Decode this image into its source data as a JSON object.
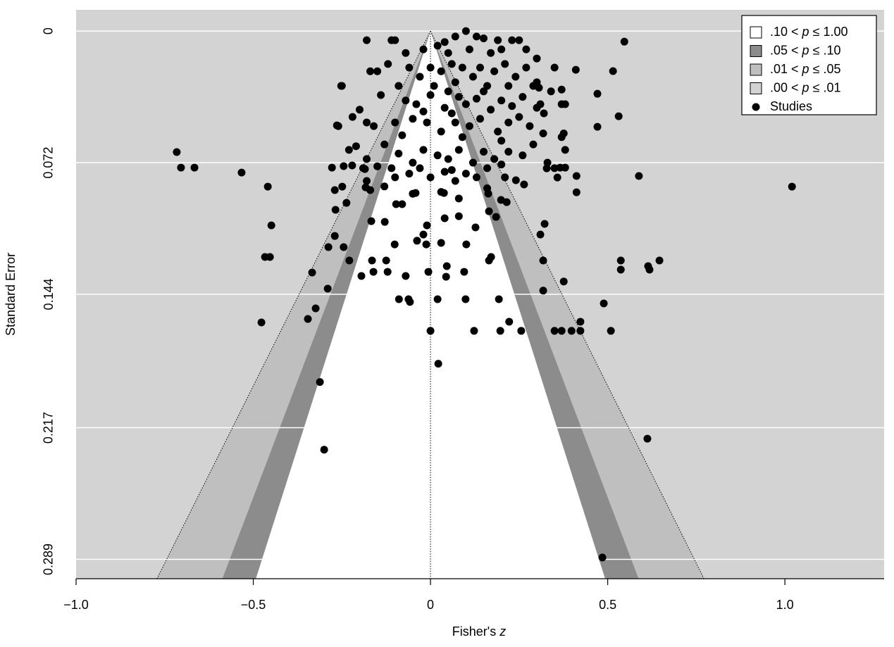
{
  "chart_data": {
    "type": "funnel",
    "xlabel": [
      "Fisher's ",
      "z"
    ],
    "ylabel": "Standard Error",
    "xlim": [
      -1.0,
      1.28
    ],
    "ylim": [
      -0.0116,
      0.2996
    ],
    "y_reversed": true,
    "xticks": [
      {
        "value": -1.0,
        "label": "−1.0"
      },
      {
        "value": -0.5,
        "label": "−0.5"
      },
      0,
      0.5,
      {
        "value": 1.0,
        "label": "1.0"
      }
    ],
    "yticks": [
      0,
      0.072,
      0.144,
      0.217,
      0.289
    ],
    "grid": true,
    "refline": 0,
    "legend_position": "top-right",
    "contours": [
      {
        "label": [
          ".10 < ",
          "p",
          " ≤ 1.00"
        ],
        "p_range": [
          0.1,
          1.0
        ],
        "color": "#ffffff"
      },
      {
        "label": [
          ".05 < ",
          "p",
          " ≤ .10"
        ],
        "p_range": [
          0.05,
          0.1
        ],
        "color": "#8c8c8c"
      },
      {
        "label": [
          ".01 < ",
          "p",
          " ≤ .05"
        ],
        "p_range": [
          0.01,
          0.05
        ],
        "color": "#bfbfbf"
      },
      {
        "label": [
          ".00 < ",
          "p",
          " ≤ .01"
        ],
        "p_range": [
          0.0,
          0.01
        ],
        "color": "#d3d3d3"
      }
    ],
    "series": [
      {
        "name": "Studies",
        "color": "#000000",
        "x": [
          -0.716,
          -0.704,
          -0.666,
          -0.533,
          -0.459,
          -0.449,
          -0.467,
          -0.453,
          -0.477,
          1.02,
          0.588,
          0.547,
          0.515,
          0.41,
          0.471,
          0.531,
          0.471,
          0.485,
          0.612,
          -0.3,
          -0.312,
          0.022,
          0,
          0.123,
          0.197,
          0.256,
          0.35,
          0.37,
          0.398,
          0.423,
          0.222,
          0.423,
          0.509,
          0.489,
          0.376,
          0.318,
          0.318,
          0.614,
          0.618,
          0.646,
          0.537,
          0.537,
          -0.346,
          -0.324,
          -0.29,
          -0.334,
          -0.195,
          -0.165,
          -0.125,
          -0.121,
          -0.161,
          -0.089,
          -0.062,
          -0.058,
          -0.07,
          -0.006,
          0.044,
          0.046,
          0.095,
          0.099,
          0.02,
          0.193,
          0.171,
          0.165,
          -0.288,
          -0.245,
          -0.229,
          -0.27,
          -0.268,
          -0.237,
          -0.27,
          -0.249,
          -0.101,
          -0.038,
          -0.012,
          0.03,
          -0.02,
          -0.01,
          0.04,
          0.08,
          0.101,
          0.127,
          0.165,
          0.185,
          0.215,
          0.322,
          0.31,
          -0.167,
          -0.129,
          -0.097,
          -0.08,
          -0.042,
          0.038,
          0.08,
          0.163,
          0.199,
          0.241,
          0.264,
          0.328,
          0.358,
          0.366,
          0.38,
          0.412,
          0.412,
          -0.278,
          -0.245,
          -0.221,
          -0.185,
          -0.183,
          0.376,
          0.37,
          0.318,
          0.306,
          -0.264,
          -0.252,
          -0.18,
          -0.1,
          -0.11,
          0.04,
          0.1,
          0.13,
          0.19,
          0.23,
          0.25,
          0.07,
          0.15,
          0.2,
          0.27,
          0.02,
          -0.07,
          -0.02,
          0.05,
          0.11,
          0.3,
          0.17,
          -0.17,
          -0.15,
          -0.12,
          -0.06,
          -0.03,
          0.0,
          0.03,
          0.06,
          0.09,
          0.12,
          0.14,
          0.18,
          0.21,
          0.24,
          0.27,
          0.3,
          0.35,
          -0.09,
          0.01,
          0.07,
          0.16,
          0.22,
          0.29,
          -0.25,
          -0.14,
          -0.07,
          -0.04,
          0.0,
          0.04,
          0.08,
          0.1,
          0.13,
          0.17,
          0.2,
          0.23,
          0.26,
          0.31,
          0.34,
          0.37,
          0.38,
          0.05,
          0.15,
          -0.02,
          0.06,
          -0.2,
          -0.22,
          -0.18,
          -0.16,
          -0.1,
          -0.05,
          -0.01,
          0.03,
          0.07,
          0.11,
          0.14,
          0.19,
          0.22,
          0.25,
          0.3,
          0.32,
          -0.26,
          -0.08,
          0.09,
          0.2,
          0.28,
          -0.23,
          -0.21,
          -0.18,
          -0.13,
          -0.09,
          -0.05,
          -0.02,
          0.02,
          0.05,
          0.08,
          0.12,
          0.15,
          0.18,
          0.22,
          0.26,
          0.29,
          0.37,
          0.38,
          -0.15,
          -0.11,
          -0.03,
          0.06,
          0.16,
          0.2,
          0.33,
          0.35,
          -0.19,
          -0.18,
          -0.13,
          -0.1,
          -0.06,
          0.0,
          0.04,
          0.07,
          0.1,
          0.13,
          0.16,
          0.21,
          -0.17,
          -0.05,
          0.03
        ],
        "values": [
          0.0662,
          0.0747,
          0.0747,
          0.0774,
          0.0851,
          0.1063,
          0.1236,
          0.1236,
          0.1594,
          0.0851,
          0.0793,
          0.0058,
          0.0219,
          0.0212,
          0.0343,
          0.0466,
          0.0524,
          0.288,
          0.223,
          0.229,
          0.192,
          0.182,
          0.164,
          0.164,
          0.164,
          0.164,
          0.164,
          0.164,
          0.164,
          0.164,
          0.159,
          0.159,
          0.164,
          0.149,
          0.137,
          0.142,
          0.1255,
          0.1286,
          0.1305,
          0.1255,
          0.1255,
          0.1305,
          0.1575,
          0.1517,
          0.1409,
          0.1321,
          0.134,
          0.1255,
          0.1255,
          0.1317,
          0.1317,
          0.1467,
          0.1467,
          0.1482,
          0.134,
          0.1317,
          0.1344,
          0.1286,
          0.1317,
          0.1467,
          0.1467,
          0.1467,
          0.1236,
          0.1255,
          0.1182,
          0.1182,
          0.1255,
          0.1121,
          0.0978,
          0.094,
          0.087,
          0.0851,
          0.1167,
          0.1147,
          0.1167,
          0.1159,
          0.1113,
          0.1063,
          0.1024,
          0.1013,
          0.1167,
          0.1074,
          0.0986,
          0.1017,
          0.0936,
          0.1055,
          0.1113,
          0.104,
          0.1044,
          0.0947,
          0.0947,
          0.0886,
          0.0886,
          0.0916,
          0.0889,
          0.0924,
          0.0816,
          0.0839,
          0.0751,
          0.0801,
          0.0747,
          0.0747,
          0.0793,
          0.0882,
          0.0747,
          0.0739,
          0.0735,
          0.0755,
          0.0855,
          0.056,
          0.04,
          0.056,
          0.031,
          0.0516,
          0.03,
          0.005,
          0.005,
          0.005,
          0.006,
          0.0,
          0.003,
          0.005,
          0.005,
          0.005,
          0.003,
          0.004,
          0.01,
          0.01,
          0.008,
          0.012,
          0.01,
          0.012,
          0.01,
          0.015,
          0.012,
          0.022,
          0.022,
          0.018,
          0.02,
          0.025,
          0.02,
          0.022,
          0.018,
          0.02,
          0.025,
          0.02,
          0.022,
          0.018,
          0.025,
          0.02,
          0.028,
          0.02,
          0.03,
          0.03,
          0.028,
          0.03,
          0.03,
          0.03,
          0.03,
          0.035,
          0.038,
          0.04,
          0.035,
          0.042,
          0.036,
          0.04,
          0.037,
          0.043,
          0.038,
          0.041,
          0.036,
          0.04,
          0.033,
          0.032,
          0.04,
          0.033,
          0.033,
          0.044,
          0.045,
          0.043,
          0.047,
          0.05,
          0.052,
          0.05,
          0.048,
          0.05,
          0.055,
          0.05,
          0.052,
          0.048,
          0.055,
          0.05,
          0.047,
          0.042,
          0.045,
          0.052,
          0.057,
          0.058,
          0.06,
          0.052,
          0.065,
          0.063,
          0.07,
          0.062,
          0.067,
          0.072,
          0.065,
          0.068,
          0.07,
          0.065,
          0.072,
          0.066,
          0.07,
          0.066,
          0.068,
          0.062,
          0.058,
          0.065,
          0.074,
          0.075,
          0.075,
          0.076,
          0.075,
          0.073,
          0.072,
          0.075,
          0.075,
          0.082,
          0.085,
          0.08,
          0.078,
          0.08,
          0.077,
          0.082,
          0.078,
          0.08,
          0.086,
          0.08,
          0.087,
          0.089,
          0.088
        ]
      }
    ]
  }
}
